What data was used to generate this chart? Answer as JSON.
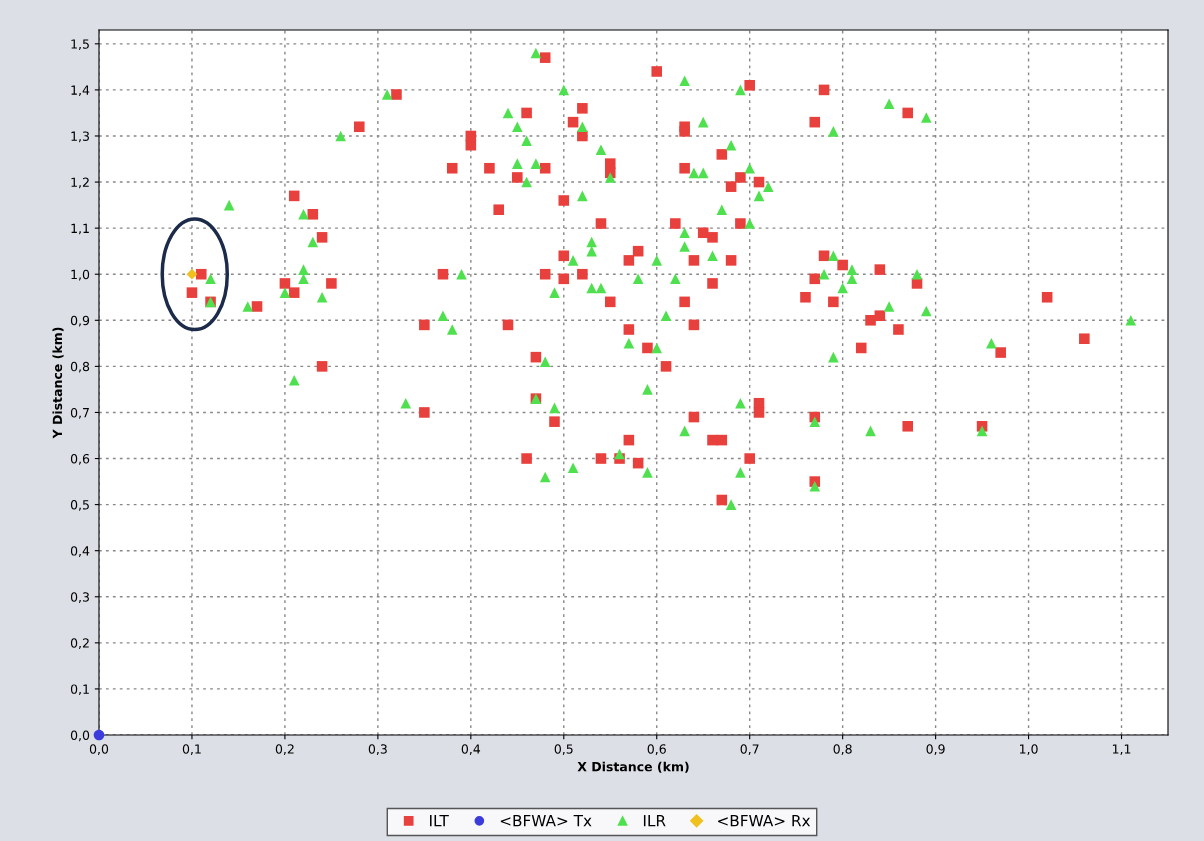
{
  "chart_data": {
    "type": "scatter",
    "xlabel": "X Distance (km)",
    "ylabel": "Y Distance (km)",
    "xlim": [
      0,
      1.15
    ],
    "ylim": [
      0,
      1.53
    ],
    "xticks": [
      {
        "value": 0,
        "label": "0,0"
      },
      {
        "value": 0.1,
        "label": "0,1"
      },
      {
        "value": 0.2,
        "label": "0,2"
      },
      {
        "value": 0.3,
        "label": "0,3"
      },
      {
        "value": 0.4,
        "label": "0,4"
      },
      {
        "value": 0.5,
        "label": "0,5"
      },
      {
        "value": 0.6,
        "label": "0,6"
      },
      {
        "value": 0.7,
        "label": "0,7"
      },
      {
        "value": 0.8,
        "label": "0,8"
      },
      {
        "value": 0.9,
        "label": "0,9"
      },
      {
        "value": 1.0,
        "label": "1,0"
      },
      {
        "value": 1.1,
        "label": "1,1"
      }
    ],
    "yticks": [
      {
        "value": 0,
        "label": "0,0"
      },
      {
        "value": 0.1,
        "label": "0,1"
      },
      {
        "value": 0.2,
        "label": "0,2"
      },
      {
        "value": 0.3,
        "label": "0,3"
      },
      {
        "value": 0.4,
        "label": "0,4"
      },
      {
        "value": 0.5,
        "label": "0,5"
      },
      {
        "value": 0.6,
        "label": "0,6"
      },
      {
        "value": 0.7,
        "label": "0,7"
      },
      {
        "value": 0.8,
        "label": "0,8"
      },
      {
        "value": 0.9,
        "label": "0,9"
      },
      {
        "value": 1.0,
        "label": "1,0"
      },
      {
        "value": 1.1,
        "label": "1,1"
      },
      {
        "value": 1.2,
        "label": "1,2"
      },
      {
        "value": 1.3,
        "label": "1,3"
      },
      {
        "value": 1.4,
        "label": "1,4"
      },
      {
        "value": 1.5,
        "label": "1,5"
      }
    ],
    "grid": true,
    "legend": "bottom",
    "series": [
      {
        "name": "ILT",
        "color": "#e8403c",
        "marker": "square",
        "x": [
          0.11,
          0.1,
          0.12,
          0.17,
          0.2,
          0.21,
          0.25,
          0.21,
          0.23,
          0.24,
          0.28,
          0.32,
          0.38,
          0.24,
          0.35,
          0.35,
          0.37,
          0.48,
          0.6,
          0.7,
          0.52,
          0.46,
          0.51,
          0.52,
          0.4,
          0.4,
          0.63,
          0.63,
          0.67,
          0.42,
          0.48,
          0.45,
          0.55,
          0.55,
          0.63,
          0.68,
          0.69,
          0.71,
          0.5,
          0.43,
          0.54,
          0.62,
          0.65,
          0.66,
          0.69,
          0.58,
          0.57,
          0.5,
          0.64,
          0.68,
          0.48,
          0.5,
          0.52,
          0.66,
          0.55,
          0.63,
          0.77,
          0.76,
          0.44,
          0.64,
          0.57,
          0.59,
          0.61,
          0.47,
          0.47,
          0.49,
          0.71,
          0.71,
          0.64,
          0.57,
          0.66,
          0.67,
          0.78,
          0.87,
          0.77,
          0.78,
          0.8,
          0.84,
          0.88,
          0.79,
          0.83,
          0.84,
          0.86,
          0.82,
          0.97,
          1.02,
          1.06,
          0.77,
          0.87,
          0.95,
          0.46,
          0.54,
          0.56,
          0.58,
          0.7,
          0.67,
          0.77
        ],
        "values": [
          1.0,
          0.96,
          0.94,
          0.93,
          0.98,
          0.96,
          0.98,
          1.17,
          1.13,
          1.08,
          1.32,
          1.39,
          1.23,
          0.8,
          0.7,
          0.89,
          1.0,
          1.47,
          1.44,
          1.41,
          1.36,
          1.35,
          1.33,
          1.3,
          1.3,
          1.28,
          1.32,
          1.31,
          1.26,
          1.23,
          1.23,
          1.21,
          1.24,
          1.22,
          1.23,
          1.19,
          1.21,
          1.2,
          1.16,
          1.14,
          1.11,
          1.11,
          1.09,
          1.08,
          1.11,
          1.05,
          1.03,
          1.04,
          1.03,
          1.03,
          1.0,
          0.99,
          1.0,
          0.98,
          0.94,
          0.94,
          0.99,
          0.95,
          0.89,
          0.89,
          0.88,
          0.84,
          0.8,
          0.82,
          0.73,
          0.68,
          0.72,
          0.7,
          0.69,
          0.64,
          0.64,
          0.64,
          1.4,
          1.35,
          1.33,
          1.04,
          1.02,
          1.01,
          0.98,
          0.94,
          0.9,
          0.91,
          0.88,
          0.84,
          0.83,
          0.95,
          0.86,
          0.69,
          0.67,
          0.67,
          0.6,
          0.6,
          0.6,
          0.59,
          0.6,
          0.51,
          0.55
        ]
      },
      {
        "name": "<BFWA> Tx",
        "color": "#3c3cdc",
        "marker": "circle",
        "x": [
          0.0
        ],
        "values": [
          0.0
        ]
      },
      {
        "name": "ILR",
        "color": "#4ee04e",
        "marker": "triangle",
        "x": [
          0.31,
          0.26,
          0.14,
          0.22,
          0.23,
          0.22,
          0.22,
          0.12,
          0.12,
          0.16,
          0.2,
          0.24,
          0.39,
          0.37,
          0.38,
          0.21,
          0.33,
          0.47,
          0.63,
          0.69,
          0.5,
          0.44,
          0.45,
          0.52,
          0.46,
          0.54,
          0.65,
          0.68,
          0.45,
          0.47,
          0.46,
          0.55,
          0.64,
          0.65,
          0.7,
          0.72,
          0.71,
          0.52,
          0.67,
          0.7,
          0.63,
          0.63,
          0.53,
          0.53,
          0.6,
          0.51,
          0.66,
          0.53,
          0.54,
          0.49,
          0.58,
          0.62,
          0.61,
          0.57,
          0.6,
          0.48,
          0.59,
          0.49,
          0.69,
          0.63,
          0.77,
          0.85,
          0.89,
          0.79,
          0.79,
          0.81,
          0.78,
          0.81,
          0.88,
          0.8,
          0.85,
          0.89,
          0.79,
          0.96,
          1.11,
          0.83,
          0.95,
          0.48,
          0.51,
          0.56,
          0.59,
          0.69,
          0.68,
          0.77,
          0.47
        ],
        "values": [
          1.39,
          1.3,
          1.15,
          1.13,
          1.07,
          1.01,
          0.99,
          0.99,
          0.94,
          0.93,
          0.96,
          0.95,
          1.0,
          0.91,
          0.88,
          0.77,
          0.72,
          1.48,
          1.42,
          1.4,
          1.4,
          1.35,
          1.32,
          1.32,
          1.29,
          1.27,
          1.33,
          1.28,
          1.24,
          1.24,
          1.2,
          1.21,
          1.22,
          1.22,
          1.23,
          1.19,
          1.17,
          1.17,
          1.14,
          1.11,
          1.09,
          1.06,
          1.07,
          1.05,
          1.03,
          1.03,
          1.04,
          0.97,
          0.97,
          0.96,
          0.99,
          0.99,
          0.91,
          0.85,
          0.84,
          0.81,
          0.75,
          0.71,
          0.72,
          0.66,
          0.68,
          1.37,
          1.34,
          1.31,
          1.04,
          1.01,
          1.0,
          0.99,
          1.0,
          0.97,
          0.93,
          0.92,
          0.82,
          0.85,
          0.9,
          0.66,
          0.66,
          0.56,
          0.58,
          0.61,
          0.57,
          0.57,
          0.5,
          0.54,
          0.73
        ]
      },
      {
        "name": "<BFWA> Rx",
        "color": "#f0c020",
        "marker": "diamond",
        "x": [
          0.1
        ],
        "values": [
          1.0
        ]
      }
    ]
  }
}
